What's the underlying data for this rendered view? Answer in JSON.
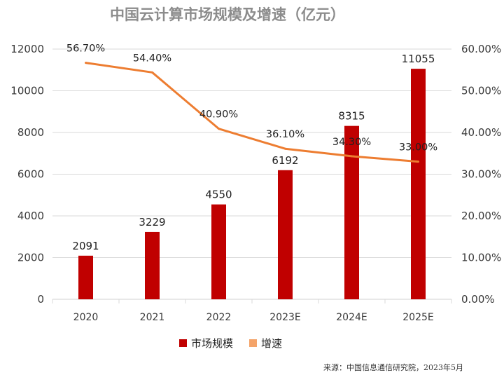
{
  "chart_data": {
    "type": "bar",
    "title": "中国云计算市场规模及增速（亿元）",
    "categories": [
      "2020",
      "2021",
      "2022",
      "2023E",
      "2024E",
      "2025E"
    ],
    "series": [
      {
        "name": "市场规模",
        "kind": "bar",
        "axis": "left",
        "values": [
          2091,
          3229,
          4550,
          6192,
          8315,
          11055
        ],
        "labels": [
          "2091",
          "3229",
          "4550",
          "6192",
          "8315",
          "11055"
        ]
      },
      {
        "name": "增速",
        "kind": "line",
        "axis": "right",
        "values": [
          56.7,
          54.4,
          40.9,
          36.1,
          34.3,
          33.0
        ],
        "labels": [
          "56.70%",
          "54.40%",
          "40.90%",
          "36.10%",
          "34.30%",
          "33.00%"
        ]
      }
    ],
    "y_left": {
      "min": 0,
      "max": 12000,
      "ticks": [
        "0",
        "2000",
        "4000",
        "6000",
        "8000",
        "10000",
        "12000"
      ]
    },
    "y_right": {
      "min": 0,
      "max": 60,
      "ticks": [
        "0.00%",
        "10.00%",
        "20.00%",
        "30.00%",
        "40.00%",
        "50.00%",
        "60.00%"
      ]
    },
    "grid": true,
    "legend_position": "bottom",
    "source": "来源：中国信息通信研究院，2023年5月",
    "colors": {
      "bar": "#c00000",
      "line": "#ed7d31",
      "legend_line": "#f4a46a",
      "grid": "#d9d9d9",
      "title": "#8c8c8c"
    }
  }
}
